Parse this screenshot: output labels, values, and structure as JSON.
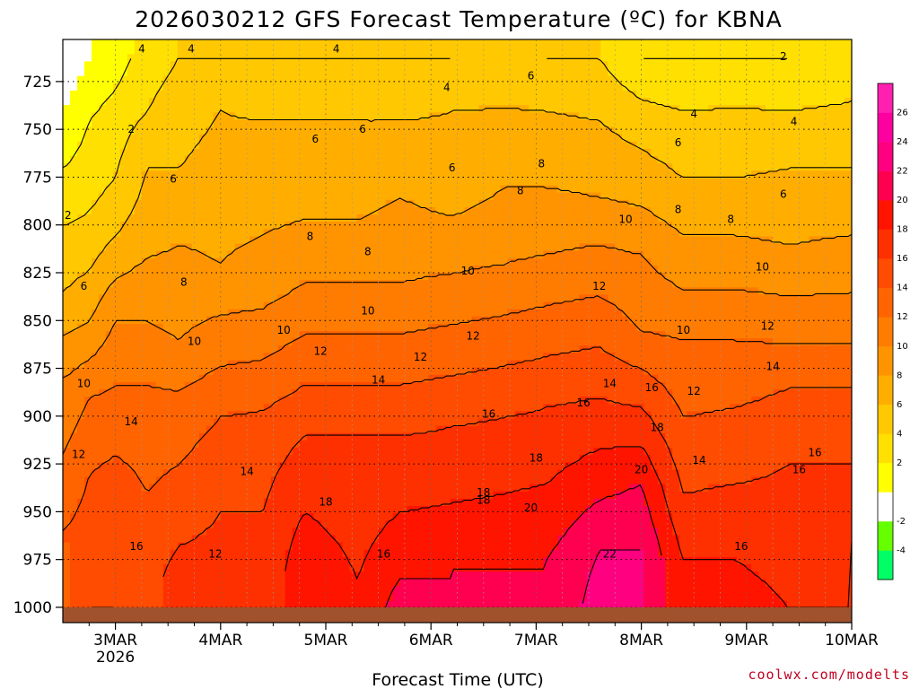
{
  "chart_data": {
    "type": "heatmap",
    "title": "2026030212 GFS Forecast Temperature (ºC) for KBNA",
    "xlabel": "Forecast Time (UTC)",
    "ylabel": "",
    "credit": "coolwx.com/modelts",
    "x_ticks": [
      {
        "day": 3,
        "label": "3MAR",
        "sub": "2026"
      },
      {
        "day": 4,
        "label": "4MAR",
        "sub": ""
      },
      {
        "day": 5,
        "label": "5MAR",
        "sub": ""
      },
      {
        "day": 6,
        "label": "6MAR",
        "sub": ""
      },
      {
        "day": 7,
        "label": "7MAR",
        "sub": ""
      },
      {
        "day": 8,
        "label": "8MAR",
        "sub": ""
      },
      {
        "day": 9,
        "label": "9MAR",
        "sub": ""
      },
      {
        "day": 10,
        "label": "10MAR",
        "sub": ""
      }
    ],
    "xlim": [
      2.5,
      10
    ],
    "y_ticks": [
      725,
      750,
      775,
      800,
      825,
      850,
      875,
      900,
      925,
      950,
      975,
      1000
    ],
    "ylim": [
      703,
      1008
    ],
    "ground_level_hpa": 1000,
    "colorbar": {
      "levels": [
        -6,
        -4,
        -2,
        0,
        2,
        4,
        6,
        8,
        10,
        12,
        14,
        16,
        18,
        20,
        22,
        24,
        26,
        28
      ],
      "labels": [
        "-4",
        "-2",
        "2",
        "4",
        "6",
        "8",
        "10",
        "12",
        "14",
        "16",
        "18",
        "20",
        "22",
        "24",
        "26"
      ],
      "colors": [
        "#00ff66",
        "#66ff00",
        "#ffffff",
        "#ffff00",
        "#ffe000",
        "#ffc800",
        "#ffae00",
        "#ff9400",
        "#ff7c00",
        "#ff6400",
        "#ff4c00",
        "#ff3000",
        "#ff1400",
        "#ff0050",
        "#ff0080",
        "#ff00a0",
        "#ff20b0"
      ]
    },
    "series": [
      {
        "name": "col2.5",
        "x": 2.5,
        "temps": [
          [
            712,
            -2
          ],
          [
            740,
            0
          ],
          [
            770,
            2
          ],
          [
            800,
            4
          ],
          [
            835,
            6
          ],
          [
            880,
            10
          ],
          [
            920,
            12
          ],
          [
            960,
            14
          ],
          [
            1000,
            13
          ]
        ]
      },
      {
        "name": "col2.75",
        "x": 2.75,
        "temps": [
          [
            712,
            0
          ],
          [
            745,
            2
          ],
          [
            775,
            3
          ],
          [
            810,
            5
          ],
          [
            850,
            8
          ],
          [
            890,
            12
          ],
          [
            930,
            14
          ],
          [
            970,
            15
          ],
          [
            1000,
            16
          ]
        ]
      },
      {
        "name": "col3.0",
        "x": 3.0,
        "temps": [
          [
            712,
            1
          ],
          [
            745,
            3
          ],
          [
            775,
            4
          ],
          [
            805,
            6
          ],
          [
            850,
            10
          ],
          [
            900,
            13
          ],
          [
            940,
            15
          ],
          [
            980,
            16
          ],
          [
            1000,
            16
          ]
        ]
      },
      {
        "name": "col3.3",
        "x": 3.3,
        "temps": [
          [
            712,
            3
          ],
          [
            740,
            4
          ],
          [
            770,
            6
          ],
          [
            800,
            7
          ],
          [
            850,
            10
          ],
          [
            900,
            13
          ],
          [
            940,
            14
          ],
          [
            980,
            15
          ],
          [
            1000,
            15
          ]
        ]
      },
      {
        "name": "col3.6",
        "x": 3.6,
        "temps": [
          [
            712,
            4
          ],
          [
            740,
            5
          ],
          [
            770,
            6
          ],
          [
            810,
            8
          ],
          [
            860,
            10
          ],
          [
            900,
            13
          ],
          [
            950,
            15
          ],
          [
            985,
            17
          ],
          [
            1000,
            17
          ]
        ]
      },
      {
        "name": "col4.0",
        "x": 4.0,
        "temps": [
          [
            712,
            4
          ],
          [
            740,
            6
          ],
          [
            775,
            7
          ],
          [
            820,
            8
          ],
          [
            860,
            11
          ],
          [
            900,
            14
          ],
          [
            950,
            16
          ],
          [
            985,
            17
          ],
          [
            1000,
            17
          ]
        ]
      },
      {
        "name": "col4.4",
        "x": 4.4,
        "temps": [
          [
            712,
            4
          ],
          [
            745,
            6
          ],
          [
            780,
            7
          ],
          [
            830,
            9
          ],
          [
            870,
            12
          ],
          [
            910,
            15
          ],
          [
            950,
            16
          ],
          [
            985,
            16
          ],
          [
            1000,
            16
          ]
        ]
      },
      {
        "name": "col4.8",
        "x": 4.8,
        "temps": [
          [
            712,
            4
          ],
          [
            745,
            6
          ],
          [
            780,
            7
          ],
          [
            830,
            10
          ],
          [
            870,
            13
          ],
          [
            910,
            16
          ],
          [
            950,
            18
          ],
          [
            985,
            20
          ],
          [
            1000,
            20
          ]
        ]
      },
      {
        "name": "col5.3",
        "x": 5.3,
        "temps": [
          [
            712,
            4
          ],
          [
            745,
            6
          ],
          [
            780,
            7
          ],
          [
            830,
            10
          ],
          [
            870,
            13
          ],
          [
            910,
            16
          ],
          [
            950,
            17
          ],
          [
            985,
            18
          ],
          [
            1000,
            18
          ]
        ]
      },
      {
        "name": "col5.7",
        "x": 5.7,
        "temps": [
          [
            712,
            4
          ],
          [
            745,
            6
          ],
          [
            785,
            8
          ],
          [
            830,
            10
          ],
          [
            870,
            13
          ],
          [
            910,
            16
          ],
          [
            950,
            18
          ],
          [
            985,
            20
          ],
          [
            1000,
            21
          ]
        ]
      },
      {
        "name": "col6.2",
        "x": 6.2,
        "temps": [
          [
            712,
            4
          ],
          [
            740,
            6
          ],
          [
            780,
            7
          ],
          [
            825,
            10
          ],
          [
            865,
            13
          ],
          [
            905,
            16
          ],
          [
            945,
            18
          ],
          [
            980,
            20
          ],
          [
            1000,
            20
          ]
        ]
      },
      {
        "name": "col6.7",
        "x": 6.7,
        "temps": [
          [
            712,
            5
          ],
          [
            738,
            6
          ],
          [
            780,
            8
          ],
          [
            820,
            10
          ],
          [
            860,
            13
          ],
          [
            900,
            16
          ],
          [
            940,
            18
          ],
          [
            980,
            20
          ],
          [
            1000,
            21
          ]
        ]
      },
      {
        "name": "col7.1",
        "x": 7.1,
        "temps": [
          [
            712,
            4
          ],
          [
            740,
            6
          ],
          [
            780,
            8
          ],
          [
            815,
            10
          ],
          [
            855,
            13
          ],
          [
            895,
            16
          ],
          [
            935,
            18
          ],
          [
            975,
            20
          ],
          [
            1000,
            20
          ]
        ]
      },
      {
        "name": "col7.6",
        "x": 7.6,
        "temps": [
          [
            712,
            4
          ],
          [
            745,
            6
          ],
          [
            785,
            8
          ],
          [
            810,
            10
          ],
          [
            850,
            13
          ],
          [
            890,
            16
          ],
          [
            930,
            19
          ],
          [
            970,
            22
          ],
          [
            1000,
            23
          ]
        ]
      },
      {
        "name": "col8.0",
        "x": 8.0,
        "temps": [
          [
            712,
            2
          ],
          [
            745,
            5
          ],
          [
            790,
            8
          ],
          [
            815,
            10
          ],
          [
            855,
            12
          ],
          [
            895,
            16
          ],
          [
            935,
            20
          ],
          [
            970,
            22
          ],
          [
            1000,
            22
          ]
        ]
      },
      {
        "name": "col8.4",
        "x": 8.4,
        "temps": [
          [
            712,
            2
          ],
          [
            740,
            4
          ],
          [
            775,
            6
          ],
          [
            820,
            9
          ],
          [
            860,
            12
          ],
          [
            900,
            14
          ],
          [
            940,
            16
          ],
          [
            975,
            18
          ],
          [
            1000,
            18
          ]
        ]
      },
      {
        "name": "col8.9",
        "x": 8.9,
        "temps": [
          [
            712,
            2
          ],
          [
            738,
            4
          ],
          [
            775,
            6
          ],
          [
            820,
            9
          ],
          [
            860,
            12
          ],
          [
            895,
            14
          ],
          [
            935,
            16
          ],
          [
            975,
            18
          ],
          [
            1000,
            19
          ]
        ]
      },
      {
        "name": "col9.4",
        "x": 9.4,
        "temps": [
          [
            712,
            2
          ],
          [
            740,
            4
          ],
          [
            770,
            6
          ],
          [
            810,
            8
          ],
          [
            850,
            11
          ],
          [
            885,
            14
          ],
          [
            925,
            16
          ],
          [
            965,
            17
          ],
          [
            1000,
            18
          ]
        ]
      },
      {
        "name": "col10.0",
        "x": 10.0,
        "temps": [
          [
            712,
            3
          ],
          [
            735,
            4
          ],
          [
            770,
            6
          ],
          [
            805,
            8
          ],
          [
            850,
            11
          ],
          [
            885,
            14
          ],
          [
            925,
            16
          ],
          [
            965,
            18
          ],
          [
            1000,
            18
          ]
        ]
      }
    ],
    "contour_labels": [
      {
        "x": 2.55,
        "p": 795,
        "text": "2"
      },
      {
        "x": 3.15,
        "p": 750,
        "text": "2"
      },
      {
        "x": 3.25,
        "p": 708,
        "text": "4"
      },
      {
        "x": 3.72,
        "p": 708,
        "text": "4"
      },
      {
        "x": 5.1,
        "p": 708,
        "text": "4"
      },
      {
        "x": 6.15,
        "p": 728,
        "text": "4"
      },
      {
        "x": 8.5,
        "p": 742,
        "text": "4"
      },
      {
        "x": 9.45,
        "p": 746,
        "text": "4"
      },
      {
        "x": 9.35,
        "p": 712,
        "text": "2"
      },
      {
        "x": 2.7,
        "p": 832,
        "text": "6"
      },
      {
        "x": 3.55,
        "p": 776,
        "text": "6"
      },
      {
        "x": 4.9,
        "p": 755,
        "text": "6"
      },
      {
        "x": 5.35,
        "p": 750,
        "text": "6"
      },
      {
        "x": 6.2,
        "p": 770,
        "text": "6"
      },
      {
        "x": 6.95,
        "p": 722,
        "text": "6"
      },
      {
        "x": 8.35,
        "p": 757,
        "text": "6"
      },
      {
        "x": 9.35,
        "p": 784,
        "text": "6"
      },
      {
        "x": 3.65,
        "p": 830,
        "text": "8"
      },
      {
        "x": 4.85,
        "p": 806,
        "text": "8"
      },
      {
        "x": 5.4,
        "p": 814,
        "text": "8"
      },
      {
        "x": 6.85,
        "p": 782,
        "text": "8"
      },
      {
        "x": 7.05,
        "p": 768,
        "text": "8"
      },
      {
        "x": 8.35,
        "p": 792,
        "text": "8"
      },
      {
        "x": 8.85,
        "p": 797,
        "text": "8"
      },
      {
        "x": 2.7,
        "p": 883,
        "text": "10"
      },
      {
        "x": 3.75,
        "p": 861,
        "text": "10"
      },
      {
        "x": 4.6,
        "p": 855,
        "text": "10"
      },
      {
        "x": 5.4,
        "p": 845,
        "text": "10"
      },
      {
        "x": 6.35,
        "p": 824,
        "text": "10"
      },
      {
        "x": 7.85,
        "p": 797,
        "text": "10"
      },
      {
        "x": 8.4,
        "p": 855,
        "text": "10"
      },
      {
        "x": 9.15,
        "p": 822,
        "text": "10"
      },
      {
        "x": 2.65,
        "p": 920,
        "text": "12"
      },
      {
        "x": 3.95,
        "p": 972,
        "text": "12"
      },
      {
        "x": 4.95,
        "p": 866,
        "text": "12"
      },
      {
        "x": 5.9,
        "p": 869,
        "text": "12"
      },
      {
        "x": 6.4,
        "p": 858,
        "text": "12"
      },
      {
        "x": 7.6,
        "p": 832,
        "text": "12"
      },
      {
        "x": 8.5,
        "p": 887,
        "text": "12"
      },
      {
        "x": 9.2,
        "p": 853,
        "text": "12"
      },
      {
        "x": 3.15,
        "p": 903,
        "text": "14"
      },
      {
        "x": 4.25,
        "p": 929,
        "text": "14"
      },
      {
        "x": 5.5,
        "p": 881,
        "text": "14"
      },
      {
        "x": 7.7,
        "p": 883,
        "text": "14"
      },
      {
        "x": 8.55,
        "p": 923,
        "text": "14"
      },
      {
        "x": 9.25,
        "p": 874,
        "text": "14"
      },
      {
        "x": 3.2,
        "p": 968,
        "text": "16"
      },
      {
        "x": 5.55,
        "p": 972,
        "text": "16"
      },
      {
        "x": 6.55,
        "p": 899,
        "text": "16"
      },
      {
        "x": 7.45,
        "p": 893,
        "text": "16"
      },
      {
        "x": 8.1,
        "p": 885,
        "text": "16"
      },
      {
        "x": 8.95,
        "p": 968,
        "text": "16"
      },
      {
        "x": 9.5,
        "p": 928,
        "text": "16"
      },
      {
        "x": 9.65,
        "p": 919,
        "text": "16"
      },
      {
        "x": 5.0,
        "p": 945,
        "text": "18"
      },
      {
        "x": 6.5,
        "p": 940,
        "text": "18"
      },
      {
        "x": 6.5,
        "p": 944,
        "text": "18"
      },
      {
        "x": 7.0,
        "p": 922,
        "text": "18"
      },
      {
        "x": 8.15,
        "p": 906,
        "text": "18"
      },
      {
        "x": 6.95,
        "p": 948,
        "text": "20"
      },
      {
        "x": 8.0,
        "p": 928,
        "text": "20"
      },
      {
        "x": 7.7,
        "p": 972,
        "text": "22"
      }
    ]
  }
}
